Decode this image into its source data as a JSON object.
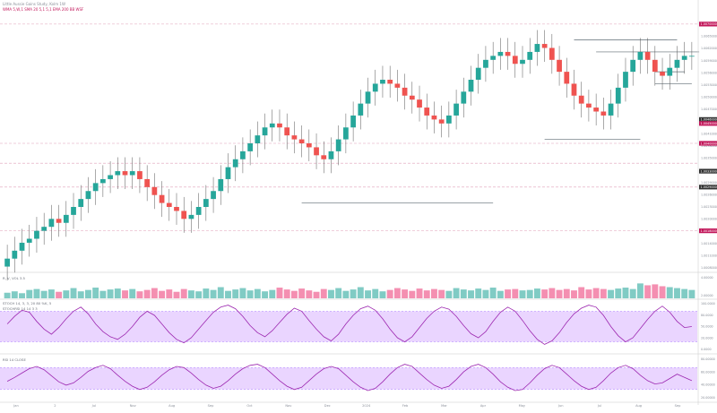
{
  "header": {
    "symbol_line": "Little Aussie Gains Study, Kolm 1W",
    "indicator_line": "WMA 5,W,1 SMA 20 5,1 5,1 EMA 200 BB WSF"
  },
  "panes": {
    "volume_label": "R, V, VOL 3.5",
    "stoch_label": "STOCH 14, 3, 3, 20 80 %K, 5",
    "stoch_sub_label": "STOCHRSI 14 14 3 3",
    "rsi_label": "RSI 14 CLOSE"
  },
  "colors": {
    "up": "#26a69a",
    "down": "#ef5350",
    "accent_pink": "#c2185b",
    "osc_line": "#9c27b0",
    "band_fill": "#d9b3ff",
    "dashed_level": "#e0a0b8"
  },
  "price_axis": {
    "ticks": [
      "1.0068000",
      "1.0065000",
      "1.0062000",
      "1.0059000",
      "1.0056000",
      "1.0053000",
      "1.0050000",
      "1.0047000",
      "1.0044000",
      "1.0041000",
      "1.0038000",
      "1.0035000",
      "1.0032000",
      "1.0029000",
      "1.0026000",
      "1.0023000",
      "1.0020000",
      "1.0017000",
      "1.0014000",
      "1.0011000",
      "1.0008000"
    ],
    "badges": [
      {
        "label": "1.0070000",
        "color": "#c2185b"
      },
      {
        "label": "1.0046000",
        "color": "#333333"
      },
      {
        "label": "1.0045000",
        "color": "#c2185b"
      },
      {
        "label": "1.0040000",
        "color": "#c2185b"
      },
      {
        "label": "1.0033000",
        "color": "#333333"
      },
      {
        "label": "1.0029000",
        "color": "#333333"
      },
      {
        "label": "1.0018000",
        "color": "#c2185b"
      }
    ]
  },
  "volume_axis": {
    "ticks": [
      "4.00000",
      "2.00000"
    ]
  },
  "stoch_axis": {
    "ticks": [
      "100.0000",
      "80.0000",
      "50.0000",
      "20.0000",
      "0.0000"
    ]
  },
  "rsi_axis": {
    "ticks": [
      "80.00000",
      "60.00000",
      "40.00000",
      "20.00000"
    ]
  },
  "time_axis": {
    "labels": [
      "Jan",
      "2",
      "Jul",
      "Nov",
      "Aug",
      "Sep",
      "Oct",
      "Nov",
      "Dec",
      "2024",
      "Feb",
      "Mar",
      "Apr",
      "May",
      "Jun",
      "Jul",
      "Aug",
      "Sep"
    ]
  },
  "chart_data": {
    "type": "candlestick",
    "title": "",
    "price_range": [
      1.0008,
      1.0072
    ],
    "close": [
      1.0011,
      1.0013,
      1.0015,
      1.0016,
      1.0018,
      1.0019,
      1.0021,
      1.002,
      1.0022,
      1.0024,
      1.0026,
      1.0028,
      1.003,
      1.0031,
      1.0032,
      1.0033,
      1.0032,
      1.0033,
      1.0031,
      1.0029,
      1.0027,
      1.0025,
      1.0024,
      1.0023,
      1.0021,
      1.0022,
      1.0024,
      1.0026,
      1.0028,
      1.0031,
      1.0034,
      1.0036,
      1.0038,
      1.004,
      1.0042,
      1.0044,
      1.0045,
      1.0044,
      1.0042,
      1.0041,
      1.004,
      1.0039,
      1.0037,
      1.0036,
      1.0038,
      1.0041,
      1.0044,
      1.0047,
      1.005,
      1.0053,
      1.0055,
      1.0056,
      1.0055,
      1.0054,
      1.0052,
      1.0051,
      1.0049,
      1.0047,
      1.0046,
      1.0045,
      1.0047,
      1.005,
      1.0053,
      1.0056,
      1.0059,
      1.0061,
      1.0062,
      1.0063,
      1.0062,
      1.006,
      1.0061,
      1.0063,
      1.0065,
      1.0064,
      1.0061,
      1.0058,
      1.0055,
      1.0052,
      1.005,
      1.0049,
      1.0048,
      1.0047,
      1.005,
      1.0054,
      1.0058,
      1.0061,
      1.0063,
      1.0061,
      1.0058,
      1.0057,
      1.0059,
      1.0061,
      1.0062,
      1.0062
    ],
    "volume_range": [
      0,
      5
    ],
    "volume": [
      1.2,
      1.5,
      1.1,
      1.8,
      2.0,
      1.6,
      1.9,
      1.4,
      1.7,
      2.2,
      1.5,
      1.8,
      2.3,
      1.6,
      1.9,
      2.1,
      1.7,
      2.0,
      1.5,
      1.8,
      2.2,
      1.6,
      1.9,
      1.4,
      2.0,
      1.7,
      1.5,
      2.1,
      1.8,
      2.4,
      1.6,
      1.9,
      2.2,
      1.7,
      2.0,
      1.5,
      1.8,
      2.3,
      1.9,
      1.6,
      2.1,
      1.7,
      1.4,
      2.0,
      1.8,
      2.2,
      1.6,
      1.9,
      2.4,
      1.7,
      2.0,
      1.5,
      1.8,
      2.2,
      1.9,
      1.6,
      2.1,
      1.7,
      2.0,
      1.8,
      1.6,
      2.2,
      1.9,
      1.7,
      2.1,
      1.8,
      2.3,
      1.6,
      1.9,
      2.0,
      1.7,
      1.8,
      2.1,
      1.9,
      2.2,
      1.8,
      2.0,
      1.7,
      2.4,
      1.9,
      2.2,
      2.0,
      1.8,
      2.1,
      2.3,
      2.0,
      3.2,
      2.8,
      3.0,
      2.6,
      2.4,
      2.2,
      2.0,
      1.8
    ],
    "stoch": [
      55,
      70,
      82,
      78,
      60,
      45,
      35,
      48,
      65,
      80,
      88,
      75,
      55,
      40,
      30,
      25,
      35,
      50,
      68,
      80,
      72,
      55,
      38,
      25,
      18,
      28,
      45,
      62,
      78,
      88,
      92,
      85,
      70,
      52,
      38,
      30,
      42,
      58,
      74,
      86,
      80,
      62,
      45,
      30,
      22,
      35,
      55,
      72,
      85,
      90,
      82,
      65,
      45,
      28,
      20,
      30,
      48,
      66,
      80,
      88,
      84,
      70,
      52,
      36,
      28,
      40,
      60,
      78,
      88,
      80,
      62,
      42,
      25,
      15,
      22,
      38,
      58,
      75,
      86,
      92,
      88,
      72,
      50,
      32,
      20,
      28,
      46,
      64,
      80,
      90,
      78,
      60,
      48,
      50
    ],
    "rsi": [
      45,
      52,
      60,
      68,
      72,
      66,
      55,
      44,
      38,
      42,
      52,
      63,
      70,
      74,
      68,
      56,
      45,
      36,
      30,
      34,
      44,
      56,
      66,
      72,
      70,
      60,
      48,
      38,
      32,
      36,
      46,
      58,
      68,
      74,
      76,
      70,
      58,
      46,
      36,
      30,
      34,
      46,
      58,
      68,
      72,
      68,
      56,
      44,
      34,
      28,
      32,
      44,
      58,
      70,
      76,
      72,
      60,
      48,
      38,
      32,
      36,
      48,
      62,
      72,
      76,
      70,
      58,
      44,
      34,
      28,
      30,
      42,
      56,
      68,
      74,
      70,
      58,
      46,
      36,
      30,
      34,
      46,
      60,
      70,
      74,
      68,
      56,
      46,
      40,
      42,
      50,
      58,
      52,
      46
    ],
    "dashed_levels": [
      1.007,
      1.004,
      1.0035,
      1.0029,
      1.0018
    ],
    "horizontal_rays": [
      {
        "y": 1.0066,
        "from_index": 77,
        "to_index": 91
      },
      {
        "y": 1.0063,
        "from_index": 80,
        "to_index": 94
      },
      {
        "y": 1.0058,
        "from_index": 88,
        "to_index": 92
      },
      {
        "y": 1.0055,
        "from_index": 88,
        "to_index": 93
      },
      {
        "y": 1.0041,
        "from_index": 73,
        "to_index": 86
      },
      {
        "y": 1.0025,
        "from_index": 40,
        "to_index": 66
      }
    ]
  }
}
